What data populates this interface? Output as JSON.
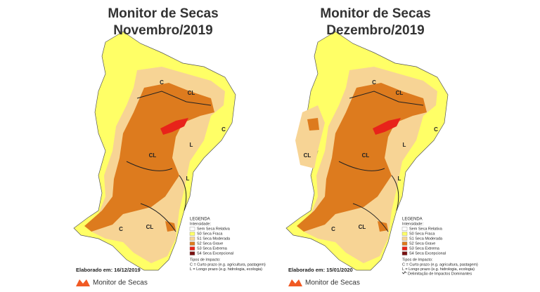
{
  "panels": [
    {
      "title": "Monitor de Secas",
      "subtitle": "Novembro/2019",
      "region_labels": [
        "C",
        "CL",
        "C",
        "L",
        "CL",
        "L",
        "C",
        "CL"
      ],
      "legend": {
        "heading": "LEGENDA",
        "intensity_heading": "Intensidade:",
        "intensity": [
          "Sem Seca Relativa",
          "S0 Seca Fraca",
          "S1 Seca Moderada",
          "S2 Seca Grave",
          "S3 Seca Extrema",
          "S4 Seca Excepcional"
        ],
        "impact_heading": "Tipos de Impacto:",
        "impact": [
          "C = Curto prazo (e.g. agricultura, pastagem)",
          "L = Longo prazo (e.g. hidrologia, ecologia)"
        ]
      },
      "elaborated": "Elaborado em: 16/12/2019",
      "brand": "Monitor de Secas"
    },
    {
      "title": "Monitor de Secas",
      "subtitle": "Dezembro/2019",
      "region_labels": [
        "C",
        "CL",
        "C",
        "L",
        "CL",
        "CL",
        "L",
        "C",
        "CL"
      ],
      "legend": {
        "heading": "LEGENDA",
        "intensity_heading": "Intensidade:",
        "intensity": [
          "Sem Seca Relativa",
          "S0 Seca Fraca",
          "S1 Seca Moderada",
          "S2 Seca Grave",
          "S3 Seca Extrema",
          "S4 Seca Excepcional"
        ],
        "impact_heading": "Tipos de Impacto:",
        "impact": [
          "C = Curto prazo (e.g. agricultura, pastagem)",
          "L = Longo prazo (e.g. hidrologia, ecologia)",
          "Delimitação de Impactos Dominantes"
        ]
      },
      "elaborated": "Elaborado em: 15/01/2020",
      "brand": "Monitor de Secas"
    }
  ]
}
